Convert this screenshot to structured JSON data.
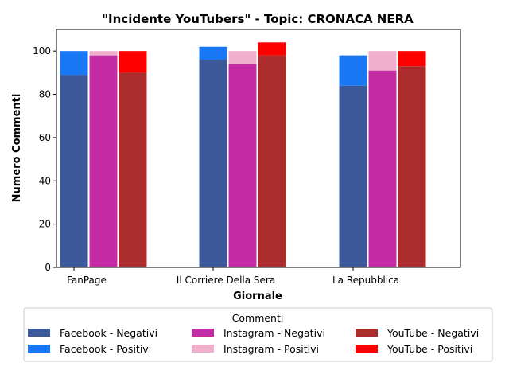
{
  "chart_data": {
    "type": "bar",
    "title": "\"Incidente YouTubers\" - Topic: CRONACA NERA",
    "xlabel": "Giornale",
    "ylabel": "Numero Commenti",
    "categories": [
      "FanPage",
      "Il Corriere Della Sera",
      "La Repubblica"
    ],
    "ylim": [
      0,
      110
    ],
    "yticks": [
      0,
      20,
      40,
      60,
      80,
      100
    ],
    "grid": false,
    "stacked_within_group": true,
    "groups": [
      {
        "platform": "Facebook",
        "negative": {
          "name": "Facebook - Negativi",
          "color": "#3b5998",
          "values": [
            89,
            96,
            84
          ]
        },
        "positive": {
          "name": "Facebook - Positivi",
          "color": "#1877f2",
          "values": [
            11,
            6,
            14
          ]
        }
      },
      {
        "platform": "Instagram",
        "negative": {
          "name": "Instagram - Negativi",
          "color": "#c32aa3",
          "values": [
            98,
            94,
            91
          ]
        },
        "positive": {
          "name": "Instagram - Positivi",
          "color": "#f0b0cc",
          "values": [
            2,
            6,
            9
          ]
        }
      },
      {
        "platform": "YouTube",
        "negative": {
          "name": "YouTube - Negativi",
          "color": "#ab2c2c",
          "values": [
            90,
            98,
            93
          ]
        },
        "positive": {
          "name": "YouTube - Positivi",
          "color": "#ff0000",
          "values": [
            10,
            6,
            7
          ]
        }
      }
    ],
    "legend": {
      "title": "Commenti",
      "placement": "bottom-center",
      "columns": 3,
      "entries": [
        {
          "label": "Facebook - Negativi",
          "color": "#3b5998"
        },
        {
          "label": "Facebook - Positivi",
          "color": "#1877f2"
        },
        {
          "label": "Instagram - Negativi",
          "color": "#c32aa3"
        },
        {
          "label": "Instagram - Positivi",
          "color": "#f0b0cc"
        },
        {
          "label": "YouTube - Negativi",
          "color": "#ab2c2c"
        },
        {
          "label": "YouTube - Positivi",
          "color": "#ff0000"
        }
      ]
    }
  }
}
